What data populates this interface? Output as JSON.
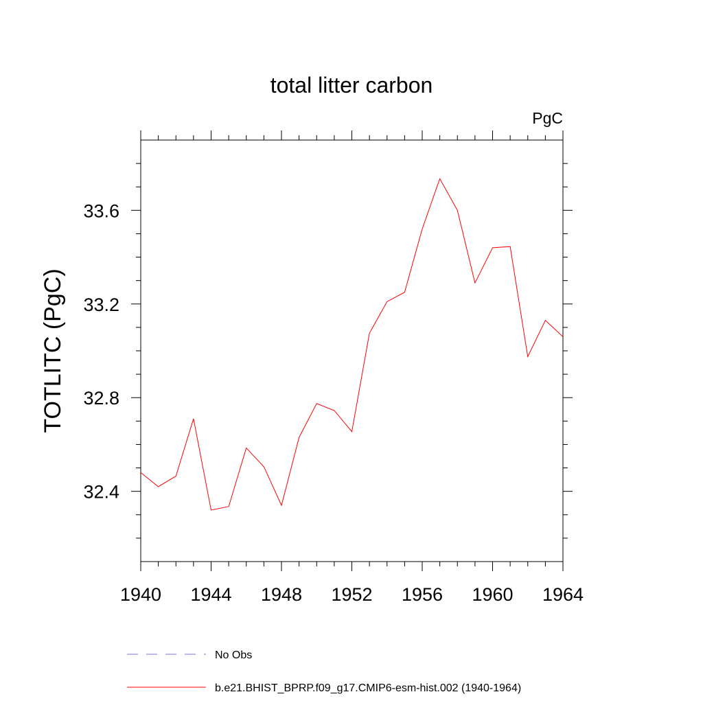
{
  "chart_data": {
    "type": "line",
    "title": "total litter carbon",
    "units_label": "PgC",
    "ylabel": "TOTLITC  (PgC)",
    "xlabel": "",
    "xlim": [
      1940,
      1964
    ],
    "ylim": [
      32.1,
      33.9
    ],
    "xticks": [
      1940,
      1944,
      1948,
      1952,
      1956,
      1960,
      1964
    ],
    "xtick_labels": [
      "1940",
      "1944",
      "1948",
      "1952",
      "1956",
      "1960",
      "1964"
    ],
    "yticks": [
      32.4,
      32.8,
      33.2,
      33.6
    ],
    "ytick_labels": [
      "32.4",
      "32.8",
      "33.2",
      "33.6"
    ],
    "grid": false,
    "legend_position": "bottom",
    "series": [
      {
        "name": "No Obs",
        "color": "#7b6fc9",
        "dash": "dashed",
        "x": [],
        "values": []
      },
      {
        "name": "b.e21.BHIST_BPRP.f09_g17.CMIP6-esm-hist.002 (1940-1964)",
        "color": "#ff0000",
        "dash": "solid",
        "x": [
          1940,
          1941,
          1942,
          1943,
          1944,
          1945,
          1946,
          1947,
          1948,
          1949,
          1950,
          1951,
          1952,
          1953,
          1954,
          1955,
          1956,
          1957,
          1958,
          1959,
          1960,
          1961,
          1962,
          1963,
          1964
        ],
        "values": [
          32.48,
          32.42,
          32.465,
          32.71,
          32.32,
          32.335,
          32.585,
          32.505,
          32.34,
          32.63,
          32.775,
          32.745,
          32.655,
          33.075,
          33.21,
          33.25,
          33.52,
          33.735,
          33.6,
          33.29,
          33.44,
          33.445,
          32.975,
          33.13,
          33.06
        ]
      }
    ]
  }
}
